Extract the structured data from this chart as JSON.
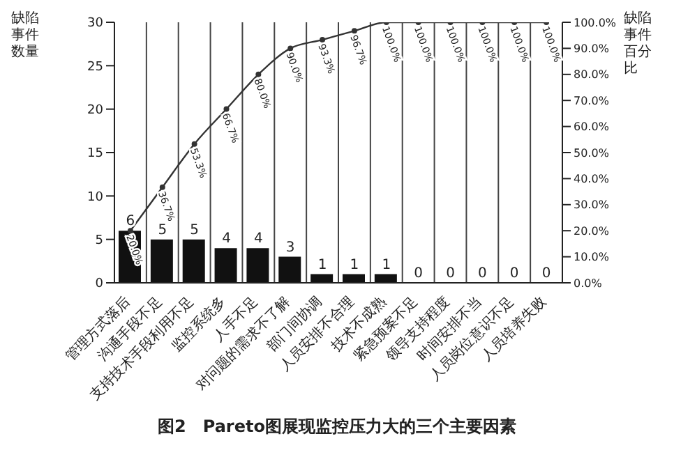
{
  "chart_data": {
    "type": "bar",
    "title": "图2　Pareto图展现监控压力大的三个主要因素",
    "ylabel": "缺陷事件数量",
    "y2label": "缺陷事件百分比",
    "categories": [
      "管理方式落后",
      "沟通手段不足",
      "支持技术手段利用不足",
      "监控系统多",
      "人手不足",
      "对问题的需求不了解",
      "部门间协调",
      "人员安排不合理",
      "技术不成熟",
      "紧急预案不足",
      "领导支持程度",
      "时间安排不当",
      "人员岗位意识不足",
      "人员培养失败"
    ],
    "series": [
      {
        "color": "#111111",
        "values": [
          6,
          5,
          5,
          4,
          4,
          3,
          1,
          1,
          1,
          0,
          0,
          0,
          0,
          0
        ]
      },
      {
        "type": "line",
        "axis": "y2",
        "color": "#333333",
        "marker": "circle",
        "values": [
          20.0,
          36.7,
          53.3,
          66.7,
          80.0,
          90.0,
          93.3,
          96.7,
          100,
          100,
          100,
          100,
          100,
          100
        ],
        "value_labels": [
          "20.0%",
          "36.7%",
          "53.3%",
          "66.7%",
          "80.0%",
          "90.0%",
          "93.3%",
          "96.7%",
          "100.0%",
          "100.0%",
          "100.0%",
          "100.0%",
          "100.0%",
          "100.0%"
        ]
      }
    ],
    "data_labels": true,
    "ylim": [
      0,
      30
    ],
    "yticks": [
      0,
      5,
      10,
      15,
      20,
      25,
      30
    ],
    "y2lim": [
      0,
      100
    ],
    "y2ticks": [
      {
        "value": 0,
        "label": "0.0%"
      },
      {
        "value": 10,
        "label": "10.0%"
      },
      {
        "value": 20,
        "label": "20.0%"
      },
      {
        "value": 30,
        "label": "30.0%"
      },
      {
        "value": 40,
        "label": "40.0%"
      },
      {
        "value": 50,
        "label": "50.0%"
      },
      {
        "value": 60,
        "label": "60.0%"
      },
      {
        "value": 70,
        "label": "70.0%"
      },
      {
        "value": 80,
        "label": "80.0%"
      },
      {
        "value": 90,
        "label": "90.0%"
      },
      {
        "value": 100,
        "label": "100.0%"
      }
    ],
    "grid": "x",
    "legend": false
  }
}
